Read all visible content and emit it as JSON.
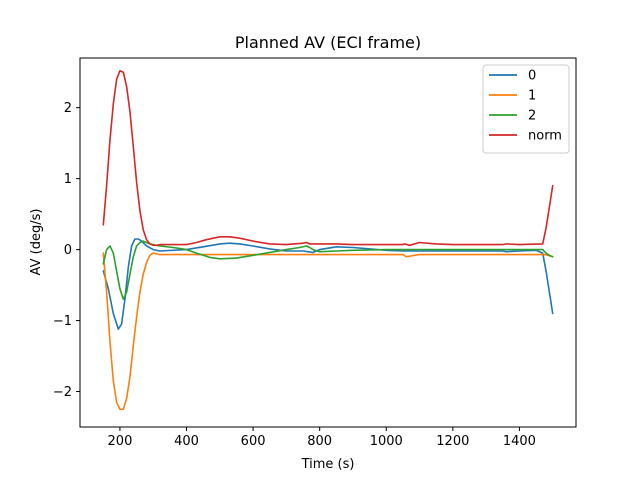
{
  "chart_data": {
    "type": "line",
    "title": "Planned AV (ECI frame)",
    "xlabel": "Time (s)",
    "ylabel": "AV (deg/s)",
    "xlim": [
      80,
      1570
    ],
    "ylim": [
      -2.5,
      2.7
    ],
    "xticks": [
      200,
      400,
      600,
      800,
      1000,
      1200,
      1400
    ],
    "yticks": [
      -2,
      -1,
      0,
      1,
      2
    ],
    "grid": false,
    "legend_position": "upper right",
    "series": [
      {
        "name": "0",
        "color": "#1f77b4",
        "x": [
          150,
          165,
          180,
          195,
          205,
          215,
          225,
          235,
          245,
          255,
          265,
          280,
          300,
          320,
          400,
          450,
          500,
          530,
          560,
          600,
          650,
          700,
          750,
          780,
          800,
          850,
          900,
          1000,
          1050,
          1100,
          1200,
          1300,
          1350,
          1360,
          1400,
          1450,
          1470,
          1480,
          1490,
          1500
        ],
        "y": [
          -0.3,
          -0.55,
          -0.9,
          -1.12,
          -1.05,
          -0.7,
          -0.25,
          0.05,
          0.15,
          0.15,
          0.12,
          0.05,
          0.0,
          -0.02,
          0.0,
          0.04,
          0.08,
          0.09,
          0.08,
          0.05,
          0.01,
          -0.02,
          -0.02,
          -0.04,
          0.0,
          0.04,
          0.03,
          -0.01,
          -0.02,
          -0.02,
          -0.02,
          -0.02,
          -0.02,
          -0.03,
          -0.02,
          -0.01,
          -0.05,
          -0.3,
          -0.6,
          -0.9
        ]
      },
      {
        "name": "1",
        "color": "#ff7f0e",
        "x": [
          150,
          160,
          170,
          180,
          190,
          200,
          210,
          220,
          230,
          240,
          250,
          260,
          270,
          280,
          290,
          300,
          320,
          400,
          500,
          600,
          700,
          800,
          900,
          1000,
          1050,
          1060,
          1100,
          1200,
          1300,
          1400,
          1480,
          1500
        ],
        "y": [
          -0.05,
          -0.6,
          -1.3,
          -1.85,
          -2.15,
          -2.25,
          -2.25,
          -2.1,
          -1.8,
          -1.35,
          -0.95,
          -0.6,
          -0.35,
          -0.18,
          -0.08,
          -0.05,
          -0.07,
          -0.07,
          -0.07,
          -0.07,
          -0.07,
          -0.07,
          -0.07,
          -0.07,
          -0.07,
          -0.1,
          -0.07,
          -0.07,
          -0.07,
          -0.07,
          -0.07,
          -0.1
        ]
      },
      {
        "name": "2",
        "color": "#2ca02c",
        "x": [
          150,
          160,
          170,
          180,
          190,
          200,
          210,
          220,
          230,
          240,
          250,
          260,
          270,
          290,
          320,
          360,
          400,
          430,
          450,
          470,
          500,
          550,
          600,
          650,
          700,
          740,
          760,
          770,
          780,
          800,
          850,
          900,
          1000,
          1100,
          1200,
          1300,
          1400,
          1470,
          1480,
          1490,
          1500
        ],
        "y": [
          -0.2,
          0.0,
          0.05,
          -0.05,
          -0.3,
          -0.55,
          -0.7,
          -0.6,
          -0.35,
          -0.1,
          0.05,
          0.1,
          0.12,
          0.08,
          0.05,
          0.03,
          0.0,
          -0.05,
          -0.08,
          -0.11,
          -0.13,
          -0.12,
          -0.08,
          -0.04,
          0.0,
          0.03,
          0.05,
          0.03,
          0.0,
          -0.03,
          -0.02,
          -0.01,
          0.0,
          0.0,
          0.0,
          0.0,
          0.0,
          0.0,
          -0.05,
          -0.08,
          -0.1
        ]
      },
      {
        "name": "norm",
        "color": "#d62728",
        "x": [
          150,
          160,
          170,
          180,
          190,
          200,
          210,
          220,
          230,
          240,
          250,
          260,
          270,
          280,
          290,
          300,
          310,
          320,
          350,
          400,
          430,
          460,
          500,
          530,
          560,
          600,
          650,
          700,
          750,
          760,
          770,
          800,
          850,
          900,
          1000,
          1050,
          1055,
          1070,
          1100,
          1150,
          1200,
          1300,
          1350,
          1360,
          1400,
          1470,
          1480,
          1490,
          1500
        ],
        "y": [
          0.35,
          0.9,
          1.55,
          2.05,
          2.4,
          2.52,
          2.5,
          2.3,
          1.95,
          1.45,
          0.95,
          0.55,
          0.28,
          0.14,
          0.08,
          0.06,
          0.06,
          0.07,
          0.07,
          0.07,
          0.1,
          0.14,
          0.18,
          0.18,
          0.16,
          0.12,
          0.08,
          0.07,
          0.09,
          0.1,
          0.08,
          0.08,
          0.08,
          0.07,
          0.07,
          0.07,
          0.08,
          0.06,
          0.1,
          0.08,
          0.07,
          0.07,
          0.07,
          0.08,
          0.07,
          0.08,
          0.3,
          0.6,
          0.9
        ]
      }
    ]
  }
}
